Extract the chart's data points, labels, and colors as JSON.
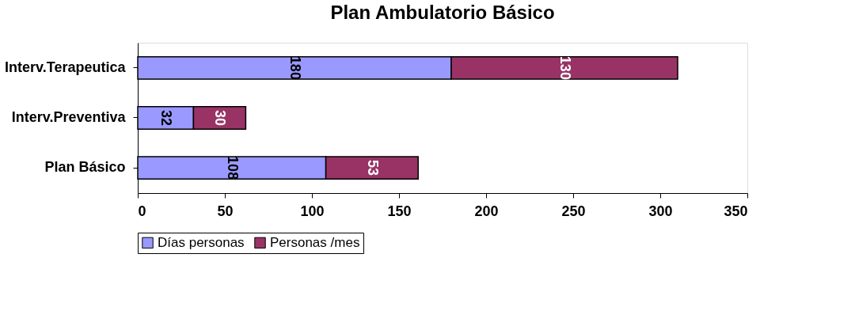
{
  "chart_data": {
    "type": "bar",
    "orientation": "horizontal",
    "stacked": true,
    "title": "Plan Ambulatorio Básico",
    "categories": [
      "Interv.Terapeutica",
      "Interv.Preventiva",
      "Plan Básico"
    ],
    "series": [
      {
        "name": "Días personas",
        "color": "#9999ff",
        "values": [
          180,
          32,
          108
        ]
      },
      {
        "name": "Personas /mes",
        "color": "#993366",
        "values": [
          130,
          30,
          53
        ]
      }
    ],
    "xlim": [
      0,
      350
    ],
    "xticks": [
      0,
      50,
      100,
      150,
      200,
      250,
      300,
      350
    ],
    "grid": false,
    "legend": "bottom",
    "data_labels": true
  }
}
